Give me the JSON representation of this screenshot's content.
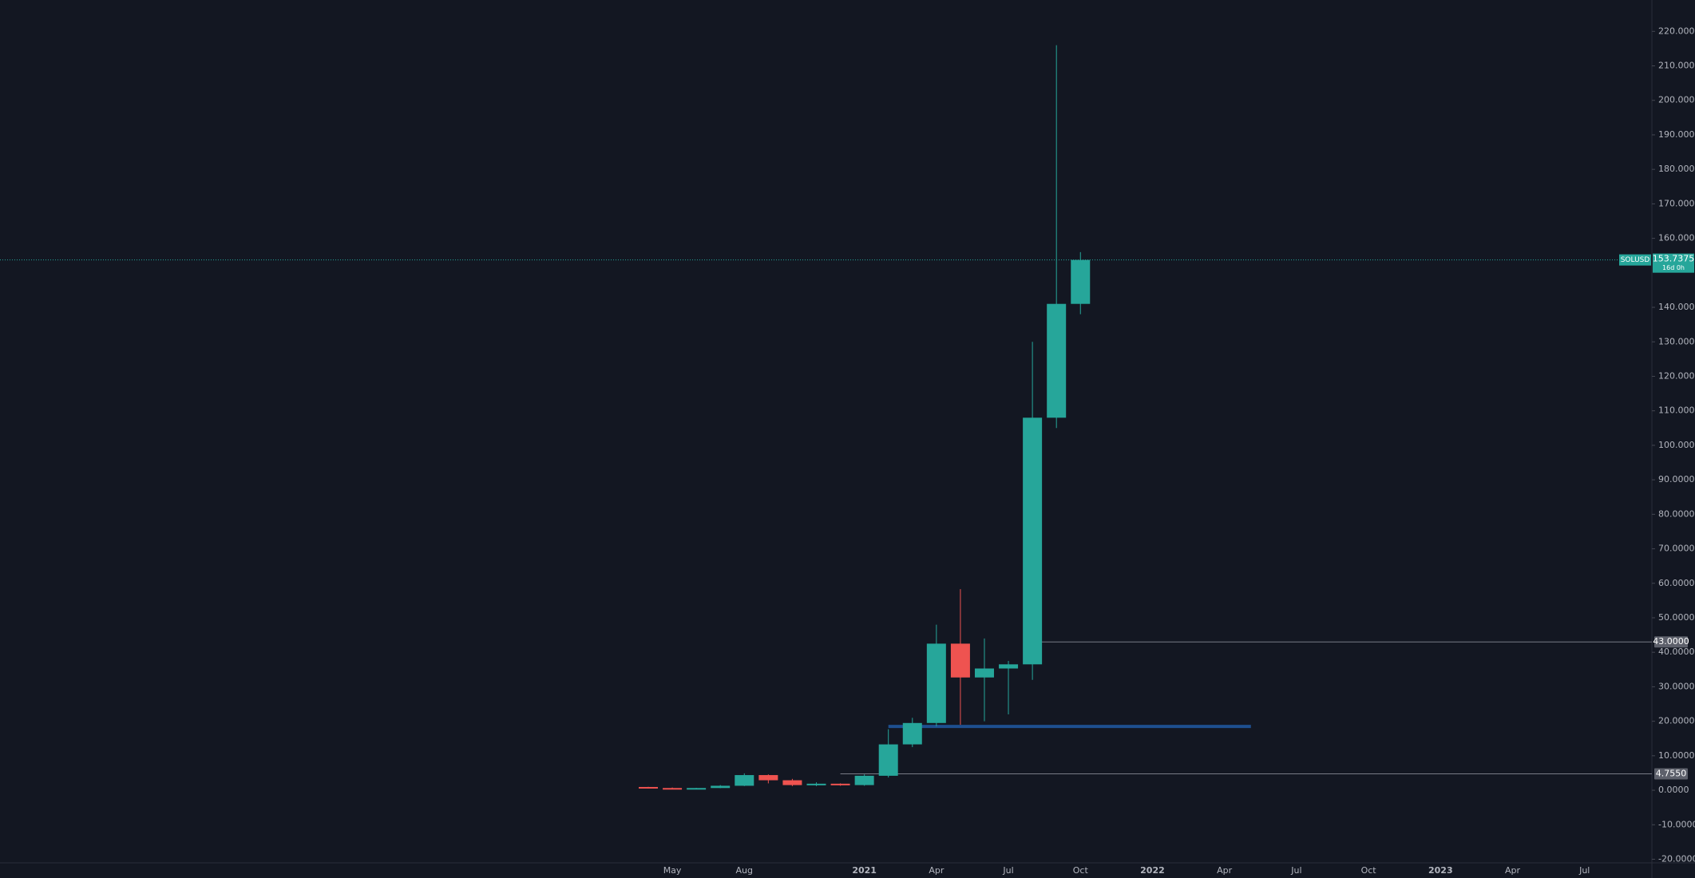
{
  "chart_data": {
    "type": "candlestick",
    "categories": [
      null,
      "May",
      null,
      null,
      "Aug",
      null,
      null,
      null,
      null,
      "2021",
      null,
      null,
      "Apr",
      null,
      null,
      "Jul",
      null,
      null,
      "Oct",
      null,
      null,
      "2022",
      null,
      null,
      "Apr",
      null,
      null,
      "Jul",
      null,
      null,
      "Oct",
      null,
      null,
      "2023",
      null,
      null,
      "Apr",
      null,
      null,
      "Jul",
      null,
      null
    ],
    "open": [
      0.95,
      0.65,
      0.5,
      0.65,
      1.3,
      4.4,
      2.9,
      1.5,
      1.9,
      1.5,
      4.2,
      13.3,
      19.5,
      42.5,
      32.7,
      35.3,
      36.5,
      108,
      141,
      null,
      null,
      null,
      null,
      null,
      null,
      null,
      null,
      null,
      null,
      null,
      null,
      null,
      null,
      null,
      null,
      null,
      null,
      null,
      null,
      null,
      null,
      null
    ],
    "high": [
      1.0,
      0.8,
      0.7,
      1.5,
      4.9,
      4.6,
      3.3,
      2.3,
      2.0,
      4.6,
      17.7,
      21,
      48,
      58.3,
      44,
      37.5,
      130,
      216,
      156,
      null,
      null,
      null,
      null,
      null,
      null,
      null,
      null,
      null,
      null,
      null,
      null,
      null,
      null,
      null,
      null,
      null,
      null,
      null,
      null,
      null,
      null,
      null
    ],
    "low": [
      0.5,
      0.4,
      0.45,
      0.6,
      1.2,
      2.0,
      1.2,
      1.2,
      1.3,
      1.3,
      3.7,
      12.5,
      18.5,
      19,
      20,
      22,
      32,
      105,
      138,
      null,
      null,
      null,
      null,
      null,
      null,
      null,
      null,
      null,
      null,
      null,
      null,
      null,
      null,
      null,
      null,
      null,
      null,
      null,
      null,
      null,
      null,
      null
    ],
    "close": [
      0.65,
      0.5,
      0.65,
      1.3,
      4.4,
      2.9,
      1.5,
      1.9,
      1.5,
      4.2,
      13.3,
      19.5,
      42.5,
      32.7,
      35.3,
      36.5,
      108,
      141,
      153.7375,
      null,
      null,
      null,
      null,
      null,
      null,
      null,
      null,
      null,
      null,
      null,
      null,
      null,
      null,
      null,
      null,
      null,
      null,
      null,
      null,
      null,
      null,
      null
    ],
    "up_color": "#26a69a",
    "down_color": "#ef5350",
    "ylim": [
      -20,
      220
    ],
    "yticks": [
      {
        "value": 220,
        "label": "220.0000"
      },
      {
        "value": 210,
        "label": "210.0000"
      },
      {
        "value": 200,
        "label": "200.0000"
      },
      {
        "value": 190,
        "label": "190.0000"
      },
      {
        "value": 180,
        "label": "180.0000"
      },
      {
        "value": 170,
        "label": "170.0000"
      },
      {
        "value": 160,
        "label": "160.0000"
      },
      {
        "value": 140,
        "label": "140.0000"
      },
      {
        "value": 130,
        "label": "130.0000"
      },
      {
        "value": 120,
        "label": "120.0000"
      },
      {
        "value": 110,
        "label": "110.0000"
      },
      {
        "value": 100,
        "label": "100.0000"
      },
      {
        "value": 90,
        "label": "90.0000"
      },
      {
        "value": 80,
        "label": "80.0000"
      },
      {
        "value": 70,
        "label": "70.0000"
      },
      {
        "value": 60,
        "label": "60.0000"
      },
      {
        "value": 50,
        "label": "50.0000"
      },
      {
        "value": 40,
        "label": "40.0000"
      },
      {
        "value": 30,
        "label": "30.0000"
      },
      {
        "value": 20,
        "label": "20.0000"
      },
      {
        "value": 10,
        "label": "10.0000"
      },
      {
        "value": 0,
        "label": "0.0000"
      },
      {
        "value": -10,
        "label": "-10.0000"
      },
      {
        "value": -20,
        "label": "-20.0000"
      }
    ],
    "symbol": "SOLUSD",
    "countdown": "16d 0h",
    "last_price": {
      "value": 153.7375,
      "label": "153.7375"
    },
    "levels": [
      {
        "value": 43,
        "label": "43.0000"
      },
      {
        "value": 4.755,
        "label": "4.7550"
      }
    ],
    "support": {
      "value": 18.5,
      "color": "#1e4f8f"
    }
  }
}
